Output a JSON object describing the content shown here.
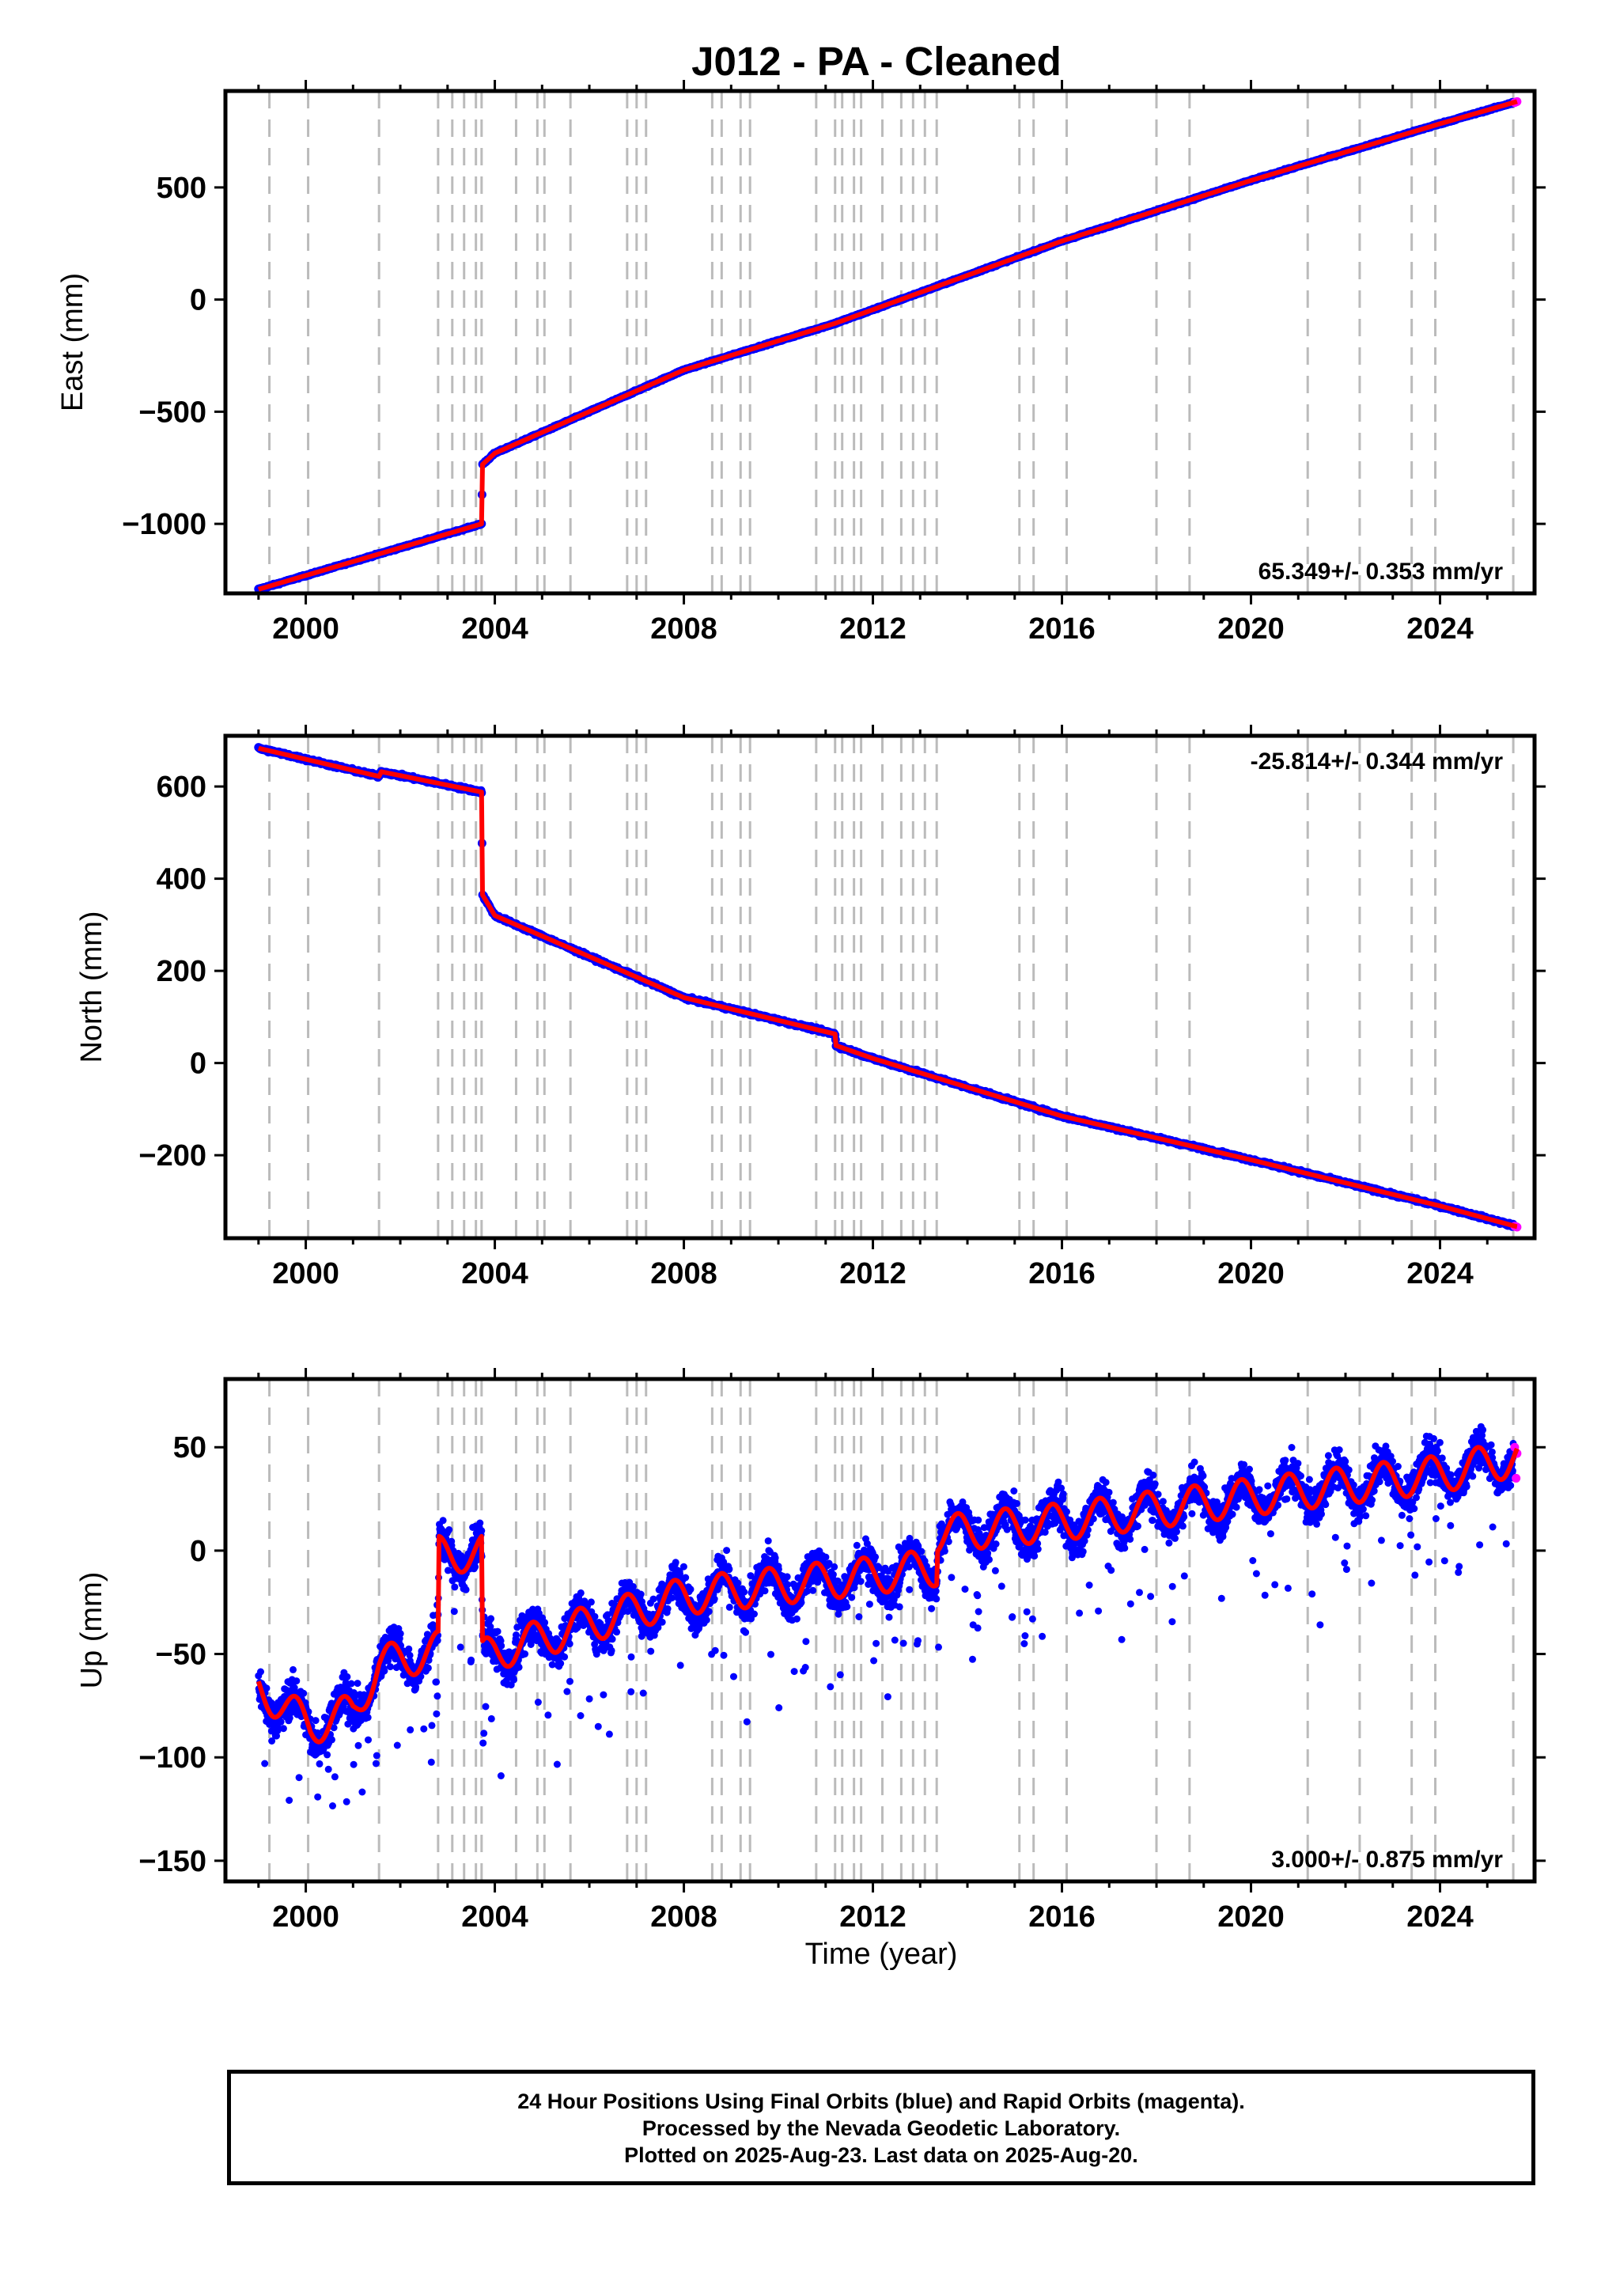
{
  "title": "J012  - PA - Cleaned",
  "xlabel": "Time (year)",
  "footer": {
    "line1": "24 Hour Positions Using Final Orbits (blue) and Rapid Orbits (magenta).",
    "line2": "Processed by the Nevada Geodetic Laboratory.",
    "line3": "Plotted on 2025-Aug-23. Last data on 2025-Aug-20."
  },
  "colors": {
    "final": "#0000ff",
    "rapid": "#ff00ff",
    "model": "#ff0000",
    "events": "#bbbbbb"
  },
  "chart_data": [
    {
      "type": "scatter",
      "panel": "east",
      "ylabel": "East (mm)",
      "rate_text": "65.349+/- 0.353 mm/yr",
      "rate_position": "bottom-right",
      "xlim": [
        1998.3,
        2026.0
      ],
      "ylim": [
        -1310,
        930
      ],
      "yticks": [
        -1000,
        -500,
        0,
        500
      ],
      "xticks": [
        2000,
        2004,
        2008,
        2012,
        2016,
        2020,
        2024
      ],
      "event_lines": [
        1999.23,
        2000.05,
        2001.55,
        2002.8,
        2003.1,
        2003.35,
        2003.6,
        2003.72,
        2004.45,
        2004.9,
        2005.05,
        2005.6,
        2006.8,
        2007.0,
        2007.2,
        2008.6,
        2008.8,
        2009.2,
        2009.4,
        2010.8,
        2011.2,
        2011.35,
        2011.6,
        2011.75,
        2012.2,
        2012.6,
        2012.85,
        2013.1,
        2013.35,
        2015.1,
        2015.4,
        2016.1,
        2018.0,
        2018.7,
        2021.2,
        2022.3,
        2023.4,
        2023.9,
        2025.55
      ],
      "trend": [
        [
          1999.0,
          -1292
        ],
        [
          2003.72,
          -1000
        ],
        [
          2003.74,
          -735
        ],
        [
          2004.0,
          -685
        ],
        [
          2008.0,
          -314
        ],
        [
          2011.2,
          -106
        ],
        [
          2012.0,
          -45
        ],
        [
          2016.0,
          261
        ],
        [
          2020.0,
          531
        ],
        [
          2024.0,
          784
        ],
        [
          2025.63,
          883
        ]
      ],
      "final_points": [
        [
          1999.0,
          -1292
        ],
        [
          2003.72,
          -1000
        ],
        [
          2003.74,
          -735
        ],
        [
          2004.0,
          -685
        ],
        [
          2008.0,
          -314
        ],
        [
          2011.2,
          -106
        ],
        [
          2012.0,
          -45
        ],
        [
          2016.0,
          261
        ],
        [
          2020.0,
          531
        ],
        [
          2024.0,
          784
        ],
        [
          2025.55,
          875
        ]
      ],
      "rapid_points": [
        [
          2025.58,
          878
        ],
        [
          2025.61,
          881
        ],
        [
          2025.63,
          883
        ]
      ]
    },
    {
      "type": "scatter",
      "panel": "north",
      "ylabel": "North (mm)",
      "rate_text": "-25.814+/- 0.344 mm/yr",
      "rate_position": "top-right",
      "xlim": [
        1998.3,
        2026.0
      ],
      "ylim": [
        -380,
        710
      ],
      "yticks": [
        -200,
        0,
        200,
        400,
        600
      ],
      "xticks": [
        2000,
        2004,
        2008,
        2012,
        2016,
        2020,
        2024
      ],
      "event_lines": [
        1999.23,
        2000.05,
        2001.55,
        2002.8,
        2003.1,
        2003.35,
        2003.6,
        2003.72,
        2004.45,
        2004.9,
        2005.05,
        2005.6,
        2006.8,
        2007.0,
        2007.2,
        2008.6,
        2008.8,
        2009.2,
        2009.4,
        2010.8,
        2011.2,
        2011.35,
        2011.6,
        2011.75,
        2012.2,
        2012.6,
        2012.85,
        2013.1,
        2013.35,
        2015.1,
        2015.4,
        2016.1,
        2018.0,
        2018.7,
        2021.2,
        2022.3,
        2023.4,
        2023.9,
        2025.55
      ],
      "trend": [
        [
          1999.0,
          683
        ],
        [
          2001.55,
          622
        ],
        [
          2001.6,
          632
        ],
        [
          2003.72,
          588
        ],
        [
          2003.74,
          365
        ],
        [
          2004.0,
          320
        ],
        [
          2008.0,
          142
        ],
        [
          2011.2,
          63
        ],
        [
          2011.22,
          38
        ],
        [
          2012.0,
          10
        ],
        [
          2016.0,
          -115
        ],
        [
          2020.0,
          -210
        ],
        [
          2024.0,
          -310
        ],
        [
          2025.63,
          -355
        ]
      ],
      "final_points": [
        [
          1999.0,
          683
        ],
        [
          2003.72,
          588
        ],
        [
          2003.74,
          365
        ],
        [
          2004.0,
          320
        ],
        [
          2008.0,
          142
        ],
        [
          2011.2,
          63
        ],
        [
          2012.0,
          10
        ],
        [
          2016.0,
          -115
        ],
        [
          2020.0,
          -210
        ],
        [
          2024.0,
          -310
        ],
        [
          2025.55,
          -353
        ]
      ],
      "rapid_points": [
        [
          2025.58,
          -354
        ],
        [
          2025.61,
          -355
        ],
        [
          2025.63,
          -356
        ]
      ]
    },
    {
      "type": "scatter",
      "panel": "up",
      "ylabel": "Up (mm)",
      "rate_text": "3.000+/- 0.875 mm/yr",
      "rate_position": "bottom-right",
      "xlim": [
        1998.3,
        2026.0
      ],
      "ylim": [
        -160,
        83
      ],
      "yticks": [
        -150,
        -100,
        -50,
        0,
        50
      ],
      "xticks": [
        2000,
        2004,
        2008,
        2012,
        2016,
        2020,
        2024
      ],
      "event_lines": [
        1999.23,
        2000.05,
        2001.55,
        2002.8,
        2003.1,
        2003.35,
        2003.6,
        2003.72,
        2004.45,
        2004.9,
        2005.05,
        2005.6,
        2006.8,
        2007.0,
        2007.2,
        2008.6,
        2008.8,
        2009.2,
        2009.4,
        2010.8,
        2011.2,
        2011.35,
        2011.6,
        2011.75,
        2012.2,
        2012.6,
        2012.85,
        2013.1,
        2013.35,
        2015.1,
        2015.4,
        2016.1,
        2018.0,
        2018.7,
        2021.2,
        2022.3,
        2023.4,
        2023.9,
        2025.55
      ],
      "trend": [
        [
          1999.0,
          -66
        ],
        [
          2000.1,
          -85
        ],
        [
          2001.0,
          -78
        ],
        [
          2001.55,
          -55
        ],
        [
          2002.5,
          -50
        ],
        [
          2002.8,
          -48
        ],
        [
          2002.82,
          -2
        ],
        [
          2003.72,
          -1
        ],
        [
          2003.74,
          -52
        ],
        [
          2004.0,
          -49
        ],
        [
          2008.0,
          -22
        ],
        [
          2012.0,
          -12
        ],
        [
          2013.35,
          -8
        ],
        [
          2013.37,
          8
        ],
        [
          2016.0,
          14
        ],
        [
          2020.0,
          26
        ],
        [
          2024.0,
          37
        ],
        [
          2025.63,
          45
        ]
      ],
      "seasonal_amplitude": 9,
      "final_points": [
        [
          1999.0,
          -66
        ],
        [
          2000.1,
          -85
        ],
        [
          2001.55,
          -55
        ],
        [
          2002.8,
          -48
        ],
        [
          2003.0,
          0
        ],
        [
          2003.72,
          -1
        ],
        [
          2004.0,
          -49
        ],
        [
          2008.0,
          -22
        ],
        [
          2012.0,
          -12
        ],
        [
          2013.4,
          8
        ],
        [
          2016.0,
          14
        ],
        [
          2020.0,
          26
        ],
        [
          2024.0,
          37
        ],
        [
          2025.55,
          44
        ]
      ],
      "rapid_points": [
        [
          2025.58,
          50
        ],
        [
          2025.61,
          35
        ],
        [
          2025.63,
          47
        ]
      ]
    }
  ]
}
